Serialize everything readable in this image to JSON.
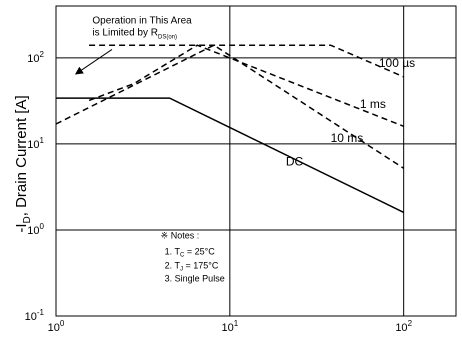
{
  "chart_data": {
    "type": "line",
    "scale": {
      "x": "log",
      "y": "log"
    },
    "xlim": [
      1,
      200
    ],
    "ylim": [
      0.1,
      400
    ],
    "grid": true,
    "ylabel_prefix": "-I",
    "ylabel_sub": "D",
    "ylabel_rest": ", Drain Current [A]",
    "xlabel": "",
    "x_ticks": [
      {
        "base": "10",
        "exp": "0",
        "value": 1
      },
      {
        "base": "10",
        "exp": "1",
        "value": 10
      },
      {
        "base": "10",
        "exp": "2",
        "value": 100
      }
    ],
    "y_ticks": [
      {
        "base": "10",
        "exp": "-1",
        "value": 0.1
      },
      {
        "base": "10",
        "exp": "0",
        "value": 1
      },
      {
        "base": "10",
        "exp": "1",
        "value": 10
      },
      {
        "base": "10",
        "exp": "2",
        "value": 100
      }
    ],
    "series": [
      {
        "name": "100 µs",
        "style": "dashed",
        "x": [
          1.55,
          8.6,
          38,
          100
        ],
        "y": [
          140,
          140,
          140,
          60
        ],
        "label_x": 72,
        "label_y": 78
      },
      {
        "name": "1 ms",
        "style": "dashed",
        "x": [
          1.55,
          2.8,
          6.5,
          100
        ],
        "y": [
          32,
          50,
          140,
          16
        ],
        "label_x": 56,
        "label_y": 26
      },
      {
        "name": "10 ms",
        "style": "dashed",
        "x": [
          1,
          8.1,
          100
        ],
        "y": [
          17,
          140,
          5.2
        ],
        "label_x": 38,
        "label_y": 10.5
      },
      {
        "name": "DC",
        "style": "solid",
        "x": [
          1,
          4.5,
          100
        ],
        "y": [
          34,
          34,
          1.6
        ],
        "label_x": 21,
        "label_y": 5.6
      }
    ],
    "annotation": {
      "line1": "Operation in This Area",
      "line2_main": "is Limited by R",
      "line2_sub": "DS(on)",
      "text_x": 1.62,
      "text_y": 250,
      "arrow_from_x": 2.1,
      "arrow_from_y": 125,
      "arrow_to_x": 1.3,
      "arrow_to_y": 65
    },
    "notes": {
      "title": "※ Notes :",
      "item1_prefix": "1. T",
      "item1_sub": "C",
      "item1_rest": " = 25°C",
      "item2_prefix": "2. T",
      "item2_sub": "J",
      "item2_rest": " = 175°C",
      "item3": "3. Single Pulse",
      "x": 4.0,
      "y": 0.8
    }
  }
}
